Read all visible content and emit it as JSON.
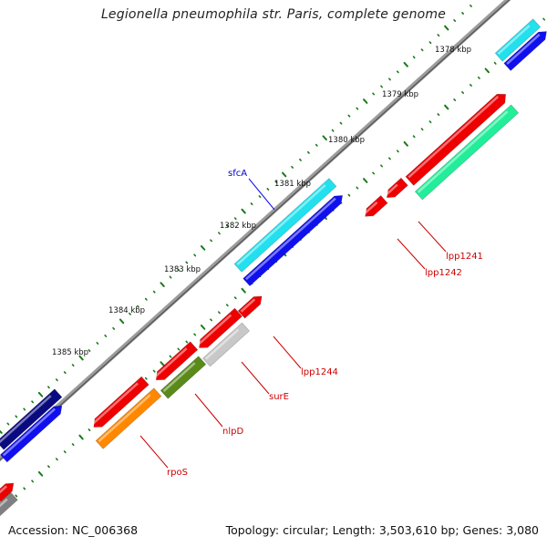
{
  "title": "Legionella pneumophila str. Paris, complete genome",
  "accession": "Accession: NC_006368",
  "stats": "Topology: circular; Length: 3,503,610 bp; Genes: 3,080",
  "ticks": [
    {
      "label": "1378 kbp"
    },
    {
      "label": "1379 kbp"
    },
    {
      "label": "1380 kbp"
    },
    {
      "label": "1381 kbp"
    },
    {
      "label": "1382 kbp"
    },
    {
      "label": "1383 kbp"
    },
    {
      "label": "1384 kbp"
    },
    {
      "label": "1385 kbp"
    }
  ],
  "gene_labels": [
    {
      "text": "sfcA",
      "color": "#0000cc"
    },
    {
      "text": "lpp1241",
      "color": "#cc0000"
    },
    {
      "text": "lpp1242",
      "color": "#cc0000"
    },
    {
      "text": "lpp1244",
      "color": "#cc0000"
    },
    {
      "text": "surE",
      "color": "#cc0000"
    },
    {
      "text": "nlpD",
      "color": "#cc0000"
    },
    {
      "text": "rpoS",
      "color": "#cc0000"
    }
  ],
  "colors": {
    "backbone": "#8a8a8a",
    "tick": "#1a7a1a",
    "red": "#ee0000",
    "blue": "#1010ee",
    "cyan": "#22e0ee",
    "navy": "#0a0a80",
    "green": "#22ee99",
    "olive": "#5a8a1a",
    "orange": "#ff8800",
    "silver": "#c8c8c8",
    "gray": "#808080"
  }
}
